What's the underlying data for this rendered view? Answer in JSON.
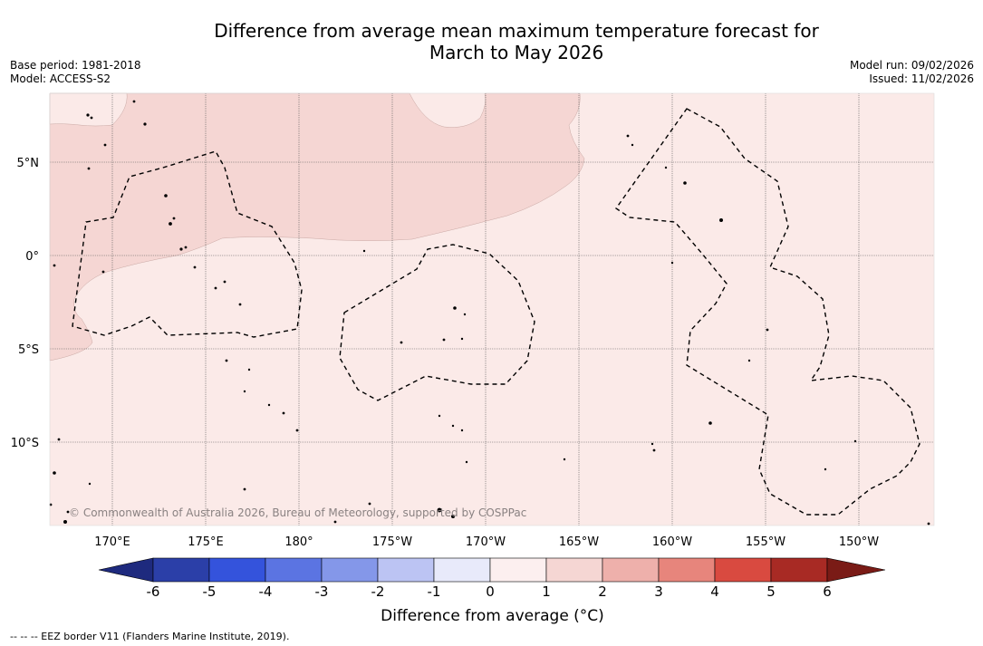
{
  "title": {
    "line1": "Difference from average mean maximum temperature forecast for",
    "line2": "March to May 2026"
  },
  "meta": {
    "base_period": "Base period: 1981-2018",
    "model": "Model: ACCESS-S2",
    "model_run": "Model run: 09/02/2026",
    "issued": "Issued: 11/02/2026"
  },
  "map": {
    "copyright": "© Commonwealth of Australia 2026, Bureau of Meteorology, supported by COSPPac",
    "lat_labels": [
      "5°N",
      "0°",
      "5°S",
      "10°S"
    ],
    "lon_labels": [
      "170°E",
      "175°E",
      "180°",
      "175°W",
      "170°W",
      "165°W",
      "160°W",
      "155°W",
      "150°W"
    ],
    "fill_colors": {
      "ocean_0_1": "#fbeae8",
      "ocean_1_2": "#f5d6d3",
      "land": "#000000"
    }
  },
  "colorbar": {
    "title": "Difference from average (°C)",
    "tick_labels": [
      "-6",
      "-5",
      "-4",
      "-3",
      "-2",
      "-1",
      "0",
      "1",
      "2",
      "3",
      "4",
      "5",
      "6"
    ],
    "colors": [
      "#2b3fa8",
      "#3453dc",
      "#5b74e2",
      "#8497e9",
      "#bcc4f3",
      "#e8eafa",
      "#fcefef",
      "#f5d6d3",
      "#eeb0ab",
      "#e7857c",
      "#d94a40",
      "#a82a24"
    ],
    "under_color": "#1e2a7e",
    "over_color": "#7a1b16"
  },
  "legend_note": "-- -- -- EEZ border V11 (Flanders Marine Institute, 2019)."
}
